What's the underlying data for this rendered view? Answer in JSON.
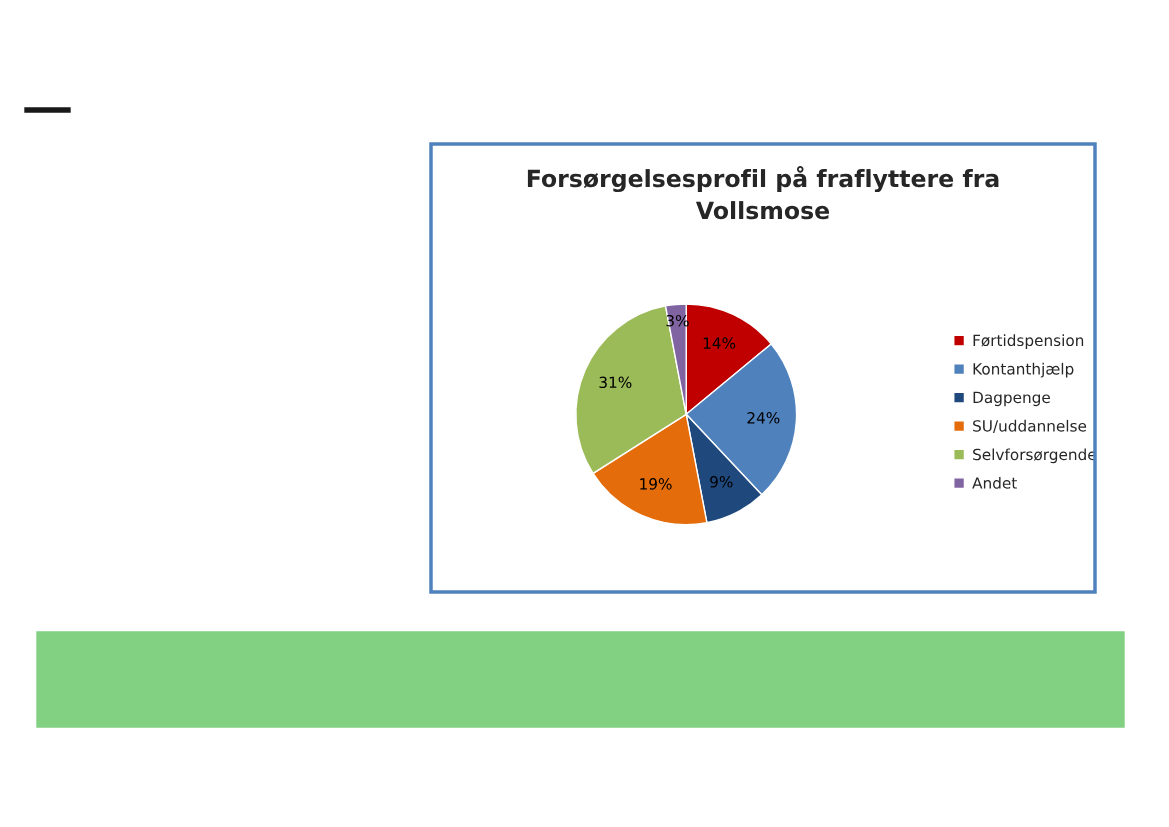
{
  "chart_data": {
    "type": "pie",
    "title": "Forsørgelsesprofil på fraflyttere fra\nVollsmose",
    "categories": [
      "Førtidspension",
      "Kontanthjælp",
      "Dagpenge",
      "SU/uddannelse",
      "Selvforsørgende",
      "Andet"
    ],
    "values": [
      14,
      24,
      9,
      19,
      31,
      3
    ],
    "value_labels": [
      "14%",
      "24%",
      "9%",
      "19%",
      "31%",
      "3%"
    ],
    "colors": [
      "#c00000",
      "#4f81bd",
      "#1f497d",
      "#e46c0a",
      "#9bbb59",
      "#8064a2"
    ],
    "legend": "right"
  }
}
